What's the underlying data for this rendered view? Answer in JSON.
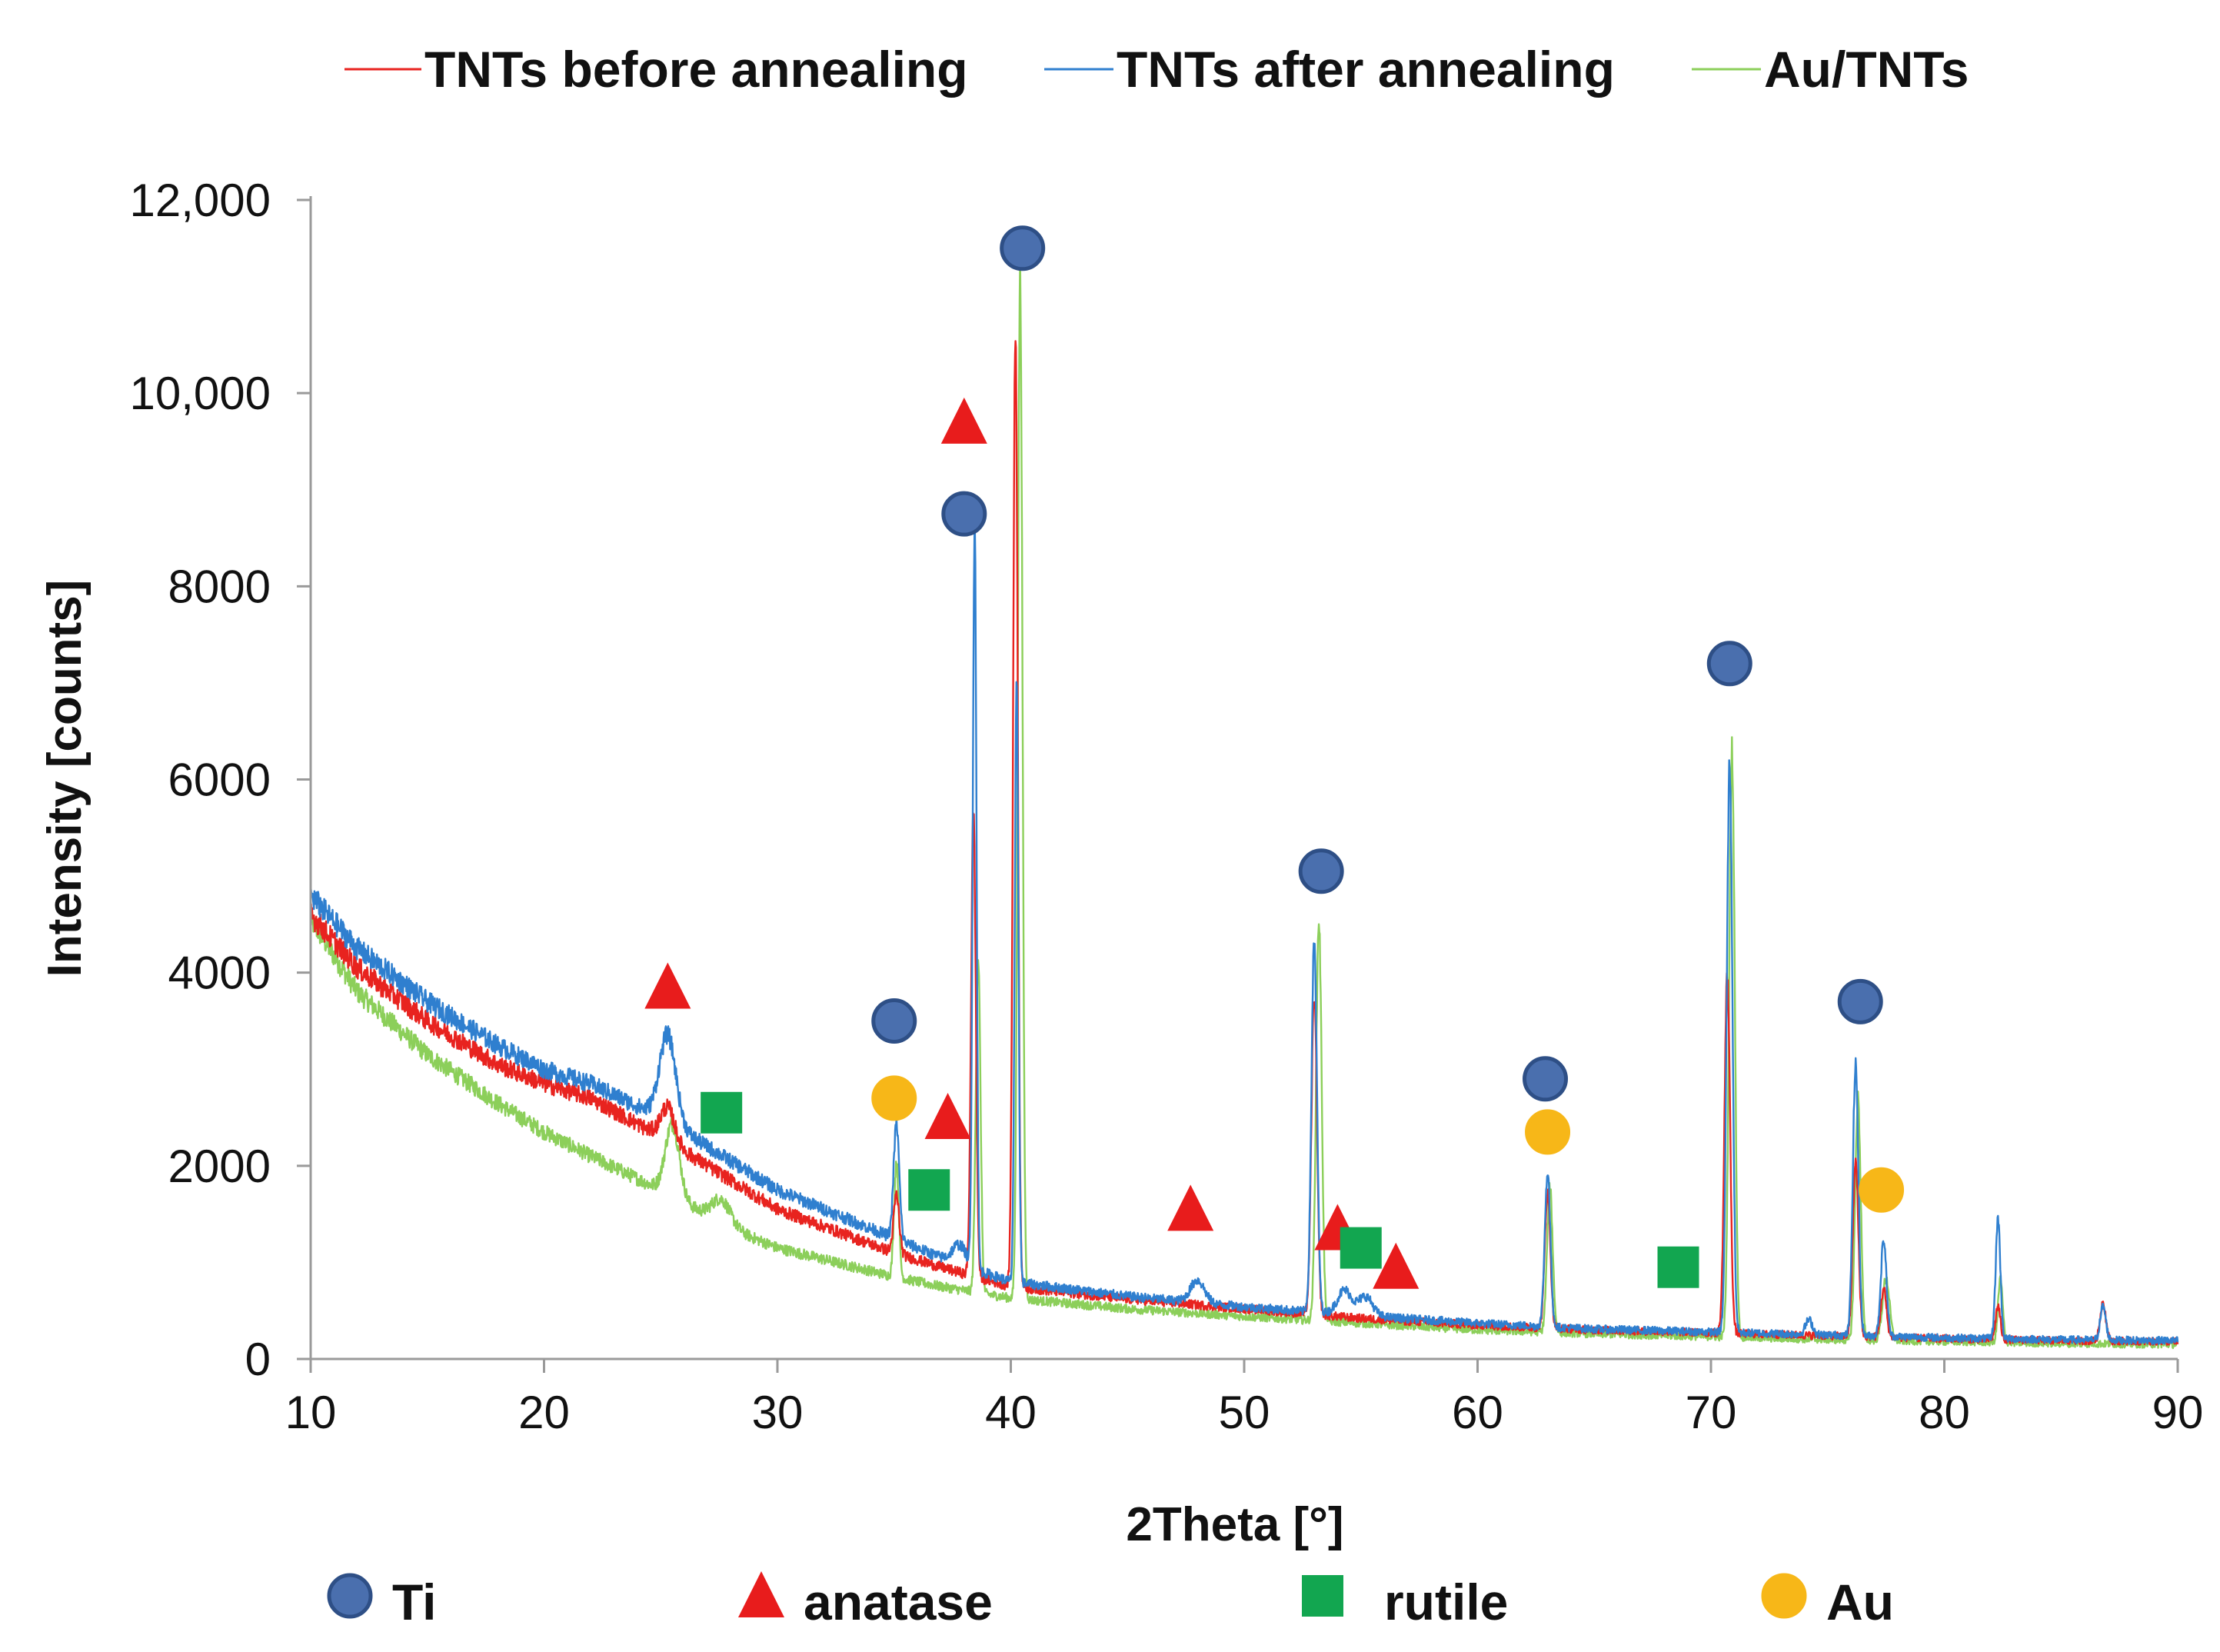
{
  "chart_data": {
    "type": "line",
    "title": "",
    "xlabel": "2Theta [°]",
    "ylabel": "Intensity [counts]",
    "xlim": [
      10,
      90
    ],
    "ylim": [
      0,
      12000
    ],
    "x_ticks": [
      "10",
      "20",
      "30",
      "40",
      "50",
      "60",
      "70",
      "80",
      "90"
    ],
    "y_ticks": [
      "0",
      "2000",
      "4000",
      "6000",
      "8000",
      "10,000",
      "12,000"
    ],
    "grid": false,
    "legend_position": "top",
    "series": [
      {
        "name": "TNTs before annealing",
        "color": "#e8231f",
        "baseline": [
          [
            10,
            4600
          ],
          [
            12,
            4050
          ],
          [
            15,
            3500
          ],
          [
            18,
            3050
          ],
          [
            20,
            2850
          ],
          [
            22,
            2700
          ],
          [
            25,
            2300
          ],
          [
            28,
            1850
          ],
          [
            30,
            1550
          ],
          [
            35,
            1100
          ],
          [
            37,
            950
          ],
          [
            40,
            750
          ],
          [
            45,
            620
          ],
          [
            50,
            520
          ],
          [
            55,
            420
          ],
          [
            60,
            350
          ],
          [
            65,
            300
          ],
          [
            70,
            270
          ],
          [
            75,
            240
          ],
          [
            80,
            210
          ],
          [
            85,
            190
          ],
          [
            90,
            180
          ]
        ],
        "peaks": [
          [
            25.3,
            350,
            0.3
          ],
          [
            35.1,
            600,
            0.12
          ],
          [
            38.4,
            4800,
            0.1
          ],
          [
            40.2,
            9900,
            0.1
          ],
          [
            53.0,
            3300,
            0.12
          ],
          [
            63.0,
            1400,
            0.12
          ],
          [
            70.7,
            3700,
            0.12
          ],
          [
            76.2,
            1800,
            0.12
          ],
          [
            77.4,
            500,
            0.12
          ],
          [
            82.3,
            350,
            0.1
          ],
          [
            86.8,
            400,
            0.12
          ]
        ]
      },
      {
        "name": "TNTs after annealing",
        "color": "#2f7fcf",
        "baseline": [
          [
            10,
            4800
          ],
          [
            12,
            4250
          ],
          [
            15,
            3700
          ],
          [
            18,
            3250
          ],
          [
            20,
            3000
          ],
          [
            22,
            2850
          ],
          [
            25,
            2500
          ],
          [
            28,
            2050
          ],
          [
            30,
            1750
          ],
          [
            35,
            1250
          ],
          [
            37,
            1050
          ],
          [
            40,
            800
          ],
          [
            45,
            650
          ],
          [
            50,
            540
          ],
          [
            55,
            450
          ],
          [
            60,
            370
          ],
          [
            65,
            310
          ],
          [
            70,
            280
          ],
          [
            75,
            250
          ],
          [
            80,
            220
          ],
          [
            85,
            200
          ],
          [
            90,
            190
          ]
        ],
        "peaks": [
          [
            25.3,
            900,
            0.35
          ],
          [
            35.1,
            1200,
            0.12
          ],
          [
            37.8,
            200,
            0.3
          ],
          [
            38.45,
            7700,
            0.08
          ],
          [
            40.25,
            6100,
            0.08
          ],
          [
            48.0,
            230,
            0.3
          ],
          [
            53.0,
            3800,
            0.12
          ],
          [
            54.3,
            250,
            0.3
          ],
          [
            55.2,
            200,
            0.3
          ],
          [
            63.0,
            1600,
            0.12
          ],
          [
            70.8,
            5900,
            0.12
          ],
          [
            74.2,
            150,
            0.15
          ],
          [
            76.2,
            2800,
            0.12
          ],
          [
            77.4,
            1000,
            0.12
          ],
          [
            82.3,
            1250,
            0.1
          ],
          [
            86.8,
            350,
            0.12
          ]
        ]
      },
      {
        "name": "Au/TNTs",
        "color": "#8ccf5a",
        "baseline": [
          [
            10,
            4550
          ],
          [
            12,
            3800
          ],
          [
            15,
            3150
          ],
          [
            18,
            2650
          ],
          [
            20,
            2350
          ],
          [
            22,
            2100
          ],
          [
            25,
            1750
          ],
          [
            28,
            1350
          ],
          [
            30,
            1150
          ],
          [
            35,
            850
          ],
          [
            37,
            750
          ],
          [
            40,
            630
          ],
          [
            45,
            520
          ],
          [
            50,
            440
          ],
          [
            55,
            370
          ],
          [
            60,
            300
          ],
          [
            65,
            260
          ],
          [
            70,
            230
          ],
          [
            75,
            200
          ],
          [
            80,
            180
          ],
          [
            85,
            160
          ],
          [
            90,
            150
          ]
        ],
        "peaks": [
          [
            25.5,
            750,
            0.3
          ],
          [
            27.6,
            250,
            0.4
          ],
          [
            35.1,
            1200,
            0.1
          ],
          [
            38.6,
            3500,
            0.1
          ],
          [
            40.4,
            10600,
            0.1
          ],
          [
            53.2,
            4150,
            0.12
          ],
          [
            63.1,
            1500,
            0.12
          ],
          [
            70.9,
            6100,
            0.12
          ],
          [
            76.3,
            2500,
            0.12
          ],
          [
            77.5,
            650,
            0.15
          ],
          [
            82.4,
            650,
            0.1
          ]
        ]
      }
    ],
    "phase_markers": [
      {
        "phase": "Ti",
        "x": 35.0,
        "y": 3500
      },
      {
        "phase": "Ti",
        "x": 38.0,
        "y": 8750
      },
      {
        "phase": "Ti",
        "x": 40.5,
        "y": 11500
      },
      {
        "phase": "Ti",
        "x": 53.3,
        "y": 5050
      },
      {
        "phase": "Ti",
        "x": 62.9,
        "y": 2900
      },
      {
        "phase": "Ti",
        "x": 70.8,
        "y": 7200
      },
      {
        "phase": "Ti",
        "x": 76.4,
        "y": 3700
      },
      {
        "phase": "anatase",
        "x": 25.3,
        "y": 3850
      },
      {
        "phase": "anatase",
        "x": 37.3,
        "y": 2500
      },
      {
        "phase": "anatase",
        "x": 38.0,
        "y": 9700
      },
      {
        "phase": "anatase",
        "x": 47.7,
        "y": 1550
      },
      {
        "phase": "anatase",
        "x": 54.0,
        "y": 1350
      },
      {
        "phase": "anatase",
        "x": 56.5,
        "y": 950
      },
      {
        "phase": "rutile",
        "x": 27.6,
        "y": 2550
      },
      {
        "phase": "rutile",
        "x": 36.5,
        "y": 1750
      },
      {
        "phase": "rutile",
        "x": 55.0,
        "y": 1150
      },
      {
        "phase": "rutile",
        "x": 68.6,
        "y": 950
      },
      {
        "phase": "Au",
        "x": 35.0,
        "y": 2700
      },
      {
        "phase": "Au",
        "x": 63.0,
        "y": 2350
      },
      {
        "phase": "Au",
        "x": 77.3,
        "y": 1750
      }
    ],
    "marker_legend": [
      {
        "phase": "Ti",
        "label": "Ti",
        "shape": "circle",
        "color": "#4a6fae",
        "stroke": "#2e4f86"
      },
      {
        "phase": "anatase",
        "label": "anatase",
        "shape": "triangle",
        "color": "#e81c1c",
        "stroke": "#e81c1c"
      },
      {
        "phase": "rutile",
        "label": "rutile",
        "shape": "square",
        "color": "#12a650",
        "stroke": "#12a650"
      },
      {
        "phase": "Au",
        "label": "Au",
        "shape": "circle",
        "color": "#f7b718",
        "stroke": "#f7b718"
      }
    ]
  }
}
